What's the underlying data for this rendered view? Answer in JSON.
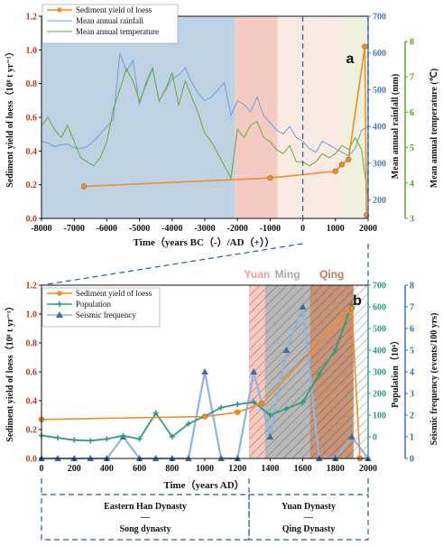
{
  "chart_data": [
    {
      "panel": "a",
      "type": "line",
      "xlabel": "Time（years BC（-）/AD（+））",
      "ylabel_left": "Sediment yield of loess（10⁸ t yr⁻¹）",
      "ylabel_right1": "Mean annual rainfall (mm)",
      "ylabel_right2": "Mean annual temperature (℃)",
      "xlim": [
        -8000,
        2000
      ],
      "x_ticks": [
        "-8000",
        "-7000",
        "-6000",
        "-5000",
        "-4000",
        "-3000",
        "-2000",
        "-1000",
        "0",
        "1000",
        "2000"
      ],
      "ylim_left": [
        0,
        1.2
      ],
      "y_ticks_left": [
        "0.0",
        "0.2",
        "0.4",
        "0.6",
        "0.8",
        "1.0",
        "1.2"
      ],
      "ylim_right1": [
        150,
        700
      ],
      "y_ticks_right1": [
        "200",
        "300",
        "400",
        "500",
        "600",
        "700"
      ],
      "ylim_right2": [
        3,
        8
      ],
      "y_ticks_right2": [
        "3",
        "4",
        "5",
        "6",
        "7",
        "8"
      ],
      "colors": {
        "sediment": "#f08c2a",
        "rainfall": "#6a9fd8",
        "temperature": "#6aa832",
        "right1_axis": "#4a7ab8",
        "right2_axis": "#5a9a28"
      },
      "bands": [
        {
          "from": -8000,
          "to": -2070,
          "color": "#bed2e4"
        },
        {
          "from": -2070,
          "to": -770,
          "color": "#f3cbc3"
        },
        {
          "from": -770,
          "to": 1270,
          "color": "#faeae4"
        },
        {
          "from": 1270,
          "to": 2000,
          "color": "#eef1de"
        }
      ],
      "legend": [
        "Sediment yield of loess",
        "Mean annual rainfall",
        "Mean annual temperature"
      ],
      "series": [
        {
          "name": "Sediment yield of loess",
          "axis": "left",
          "x": [
            -6700,
            -1000,
            1000,
            1200,
            1400,
            1900,
            1950
          ],
          "y": [
            0.19,
            0.24,
            0.28,
            0.32,
            0.35,
            1.02,
            0.02
          ]
        },
        {
          "name": "Mean annual rainfall",
          "axis": "right1",
          "x": [
            -8000,
            -7800,
            -7600,
            -7400,
            -7200,
            -7000,
            -6800,
            -6600,
            -6400,
            -6200,
            -6000,
            -5800,
            -5600,
            -5400,
            -5200,
            -5000,
            -4800,
            -4600,
            -4400,
            -4200,
            -4000,
            -3800,
            -3600,
            -3400,
            -3200,
            -3000,
            -2800,
            -2600,
            -2400,
            -2200,
            -2000,
            -1800,
            -1600,
            -1400,
            -1200,
            -1000,
            -800,
            -600,
            -400,
            -200,
            0,
            200,
            400,
            600,
            800,
            1000,
            1200,
            1400,
            1600,
            1800,
            2000
          ],
          "y": [
            360,
            355,
            345,
            350,
            352,
            342,
            340,
            345,
            360,
            380,
            400,
            420,
            600,
            550,
            580,
            460,
            520,
            560,
            470,
            500,
            530,
            540,
            560,
            520,
            490,
            470,
            480,
            500,
            520,
            430,
            470,
            460,
            440,
            480,
            430,
            410,
            390,
            380,
            400,
            370,
            360,
            340,
            330,
            360,
            350,
            340,
            330,
            320,
            340,
            390,
            400
          ]
        },
        {
          "name": "Mean annual temperature",
          "axis": "right2",
          "x": [
            -8000,
            -7800,
            -7600,
            -7400,
            -7200,
            -7000,
            -6800,
            -6600,
            -6400,
            -6200,
            -6000,
            -5800,
            -5600,
            -5400,
            -5200,
            -5000,
            -4800,
            -4600,
            -4400,
            -4200,
            -4000,
            -3800,
            -3600,
            -3400,
            -3200,
            -3000,
            -2800,
            -2600,
            -2400,
            -2200,
            -2000,
            -1800,
            -1600,
            -1400,
            -1200,
            -1000,
            -800,
            -600,
            -400,
            -200,
            0,
            200,
            400,
            600,
            800,
            1000,
            1200,
            1400,
            1600,
            1800,
            2000
          ],
          "y": [
            5.3,
            5.5,
            5.2,
            5.0,
            5.3,
            4.9,
            4.5,
            4.4,
            4.3,
            4.5,
            4.9,
            5.7,
            6.2,
            6.7,
            6.4,
            5.9,
            6.3,
            6.7,
            5.9,
            6.2,
            6.6,
            5.8,
            6.4,
            6.0,
            5.6,
            5.1,
            4.9,
            4.6,
            4.3,
            4.0,
            5.2,
            5.0,
            5.3,
            5.4,
            5.0,
            4.9,
            4.7,
            4.6,
            4.8,
            4.4,
            4.4,
            4.3,
            4.4,
            4.6,
            4.5,
            4.6,
            4.8,
            4.7,
            5.0,
            4.7,
            3.5
          ]
        }
      ]
    },
    {
      "panel": "b",
      "type": "line",
      "xlabel": "Time（years AD）",
      "ylabel_left": "Sediment yield of loess（10⁸ t yr⁻¹）",
      "ylabel_right1": "Population（10⁴）",
      "ylabel_right2": "Seismic frequency (events/100 yrs)",
      "xlim": [
        0,
        2000
      ],
      "x_ticks": [
        "0",
        "200",
        "400",
        "600",
        "800",
        "1000",
        "1200",
        "1400",
        "1600",
        "1800",
        "2000"
      ],
      "ylim_left": [
        0,
        1.2
      ],
      "y_ticks_left": [
        "0.0",
        "0.2",
        "0.4",
        "0.6",
        "0.8",
        "1.0",
        "1.2"
      ],
      "ylim_right1": [
        -100,
        700
      ],
      "y_ticks_right1": [
        "0",
        "100",
        "200",
        "300",
        "400",
        "500",
        "600",
        "700"
      ],
      "ylim_right2": [
        0,
        8
      ],
      "y_ticks_right2": [
        "0",
        "1",
        "2",
        "3",
        "4",
        "5",
        "6",
        "7",
        "8"
      ],
      "colors": {
        "sediment": "#f08c2a",
        "population": "#2f9a83",
        "seismic": "#3d6e9e",
        "seismic_line": "#8fb6dc",
        "right1_axis": "#2f9a83",
        "right2_axis": "#3d6e9e"
      },
      "eras": [
        {
          "name": "Yuan",
          "from": 1271,
          "to": 1368,
          "color": "#f7c8c0",
          "hatch": true,
          "label_color": "#f0a096"
        },
        {
          "name": "Ming",
          "from": 1368,
          "to": 1644,
          "color": "#b9b9b9",
          "hatch": true,
          "label_color": "#a8a8a8"
        },
        {
          "name": "Qing",
          "from": 1644,
          "to": 1911,
          "color": "#c89478",
          "hatch": true,
          "label_color": "#c07a60"
        }
      ],
      "legend": [
        "Sediment yield of loess",
        "Population",
        "Seismic frequency"
      ],
      "series": [
        {
          "name": "Sediment yield of loess",
          "axis": "left",
          "x": [
            0,
            1000,
            1200,
            1350,
            1900,
            1950
          ],
          "y": [
            0.27,
            0.29,
            0.32,
            0.38,
            1.04,
            0.0
          ]
        },
        {
          "name": "Population",
          "axis": "right1",
          "x": [
            0,
            100,
            200,
            300,
            400,
            500,
            600,
            700,
            800,
            900,
            1000,
            1100,
            1200,
            1300,
            1400,
            1500,
            1600,
            1700,
            1800,
            1900
          ],
          "y": [
            6,
            -5,
            -15,
            -18,
            -10,
            5,
            -10,
            110,
            0,
            60,
            95,
            135,
            150,
            160,
            100,
            130,
            160,
            290,
            400,
            610
          ]
        },
        {
          "name": "Seismic frequency",
          "axis": "right2",
          "x": [
            0,
            100,
            200,
            300,
            400,
            500,
            600,
            700,
            800,
            900,
            1000,
            1100,
            1200,
            1300,
            1400,
            1500,
            1600,
            1700,
            1800,
            1900,
            2000
          ],
          "y": [
            0,
            0,
            0,
            0,
            0,
            1,
            0,
            0,
            0,
            0,
            4,
            0,
            0,
            4,
            1,
            5,
            7,
            0,
            0,
            1,
            0
          ]
        }
      ]
    }
  ],
  "panel_labels": {
    "a": "a",
    "b": "b"
  },
  "dynasties": {
    "left_top": "Eastern Han Dynasty",
    "left_sep": "—",
    "left_bottom": "Song dynasty",
    "right_top": "Yuan Dynasty",
    "right_sep": "—",
    "right_bottom": "Qing Dynasty"
  }
}
